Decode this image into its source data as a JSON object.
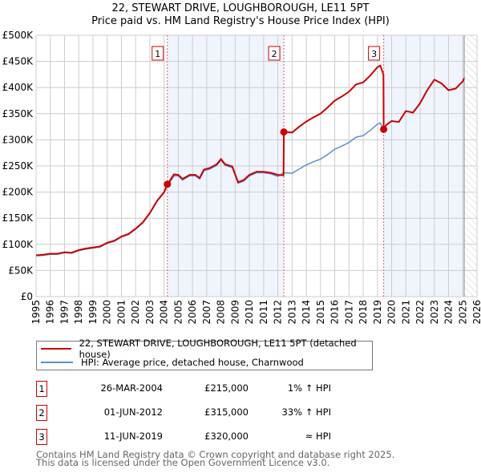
{
  "chart_data": {
    "type": "line",
    "title": "22, STEWART DRIVE, LOUGHBOROUGH, LE11 5PT",
    "subtitle": "Price paid vs. HM Land Registry's House Price Index (HPI)",
    "xlim": [
      1995,
      2026
    ],
    "ylim": [
      0,
      500000
    ],
    "x_ticks": [
      "1995",
      "1996",
      "1997",
      "1998",
      "1999",
      "2000",
      "2001",
      "2002",
      "2003",
      "2004",
      "2005",
      "2006",
      "2007",
      "2008",
      "2009",
      "2010",
      "2011",
      "2012",
      "2013",
      "2014",
      "2015",
      "2016",
      "2017",
      "2018",
      "2019",
      "2020",
      "2021",
      "2022",
      "2023",
      "2024",
      "2025",
      "2026"
    ],
    "y_ticks": [
      {
        "v": 0,
        "label": "£0"
      },
      {
        "v": 50000,
        "label": "£50K"
      },
      {
        "v": 100000,
        "label": "£100K"
      },
      {
        "v": 150000,
        "label": "£150K"
      },
      {
        "v": 200000,
        "label": "£200K"
      },
      {
        "v": 250000,
        "label": "£250K"
      },
      {
        "v": 300000,
        "label": "£300K"
      },
      {
        "v": 350000,
        "label": "£350K"
      },
      {
        "v": 400000,
        "label": "£400K"
      },
      {
        "v": 450000,
        "label": "£450K"
      },
      {
        "v": 500000,
        "label": "£500K"
      }
    ],
    "grid": true,
    "data_end": 2025.1,
    "series": [
      {
        "name": "22, STEWART DRIVE, LOUGHBOROUGH, LE11 5PT (detached house)",
        "color": "#cc0000",
        "x": [
          1995,
          1995.5,
          1996,
          1996.5,
          1997,
          1997.5,
          1998,
          1998.5,
          1999,
          1999.5,
          2000,
          2000.5,
          2001,
          2001.5,
          2002,
          2002.5,
          2003,
          2003.5,
          2004,
          2004.23,
          2004.7,
          2005,
          2005.3,
          2005.8,
          2006.2,
          2006.5,
          2006.8,
          2007.2,
          2007.7,
          2008,
          2008.3,
          2008.8,
          2009.2,
          2009.6,
          2010,
          2010.5,
          2011,
          2011.5,
          2012,
          2012.4,
          2012.42,
          2013,
          2013.5,
          2014,
          2014.5,
          2015,
          2015.5,
          2016,
          2016.5,
          2017,
          2017.5,
          2018,
          2018.5,
          2019,
          2019.2,
          2019.42,
          2019.44,
          2019.6,
          2020,
          2020.5,
          2021,
          2021.5,
          2022,
          2022.5,
          2023,
          2023.5,
          2024,
          2024.5,
          2025,
          2025.1
        ],
        "y": [
          79000,
          80000,
          82000,
          82000,
          85000,
          84000,
          89000,
          92000,
          94000,
          96000,
          103000,
          107000,
          115000,
          120000,
          130000,
          142000,
          160000,
          183000,
          200000,
          215000,
          234000,
          233000,
          225000,
          233000,
          233000,
          227000,
          243000,
          246000,
          253000,
          263000,
          253000,
          249000,
          219000,
          223000,
          233000,
          239000,
          239000,
          237000,
          233000,
          232000,
          315000,
          314000,
          325000,
          335000,
          343000,
          350000,
          362000,
          375000,
          383000,
          392000,
          406000,
          410000,
          423000,
          439000,
          442000,
          425000,
          320000,
          328000,
          336000,
          334000,
          355000,
          352000,
          370000,
          395000,
          415000,
          408000,
          395000,
          398000,
          412000,
          418000
        ]
      },
      {
        "name": "HPI: Average price, detached house, Charnwood",
        "color": "#5b8fd4",
        "x": [
          1995,
          1995.5,
          1996,
          1996.5,
          1997,
          1997.5,
          1998,
          1998.5,
          1999,
          1999.5,
          2000,
          2000.5,
          2001,
          2001.5,
          2002,
          2002.5,
          2003,
          2003.5,
          2004,
          2004.23,
          2004.7,
          2005,
          2005.3,
          2005.8,
          2006.2,
          2006.5,
          2006.8,
          2007.2,
          2007.7,
          2008,
          2008.3,
          2008.8,
          2009.2,
          2009.6,
          2010,
          2010.5,
          2011,
          2011.5,
          2012,
          2012.4,
          2013,
          2013.5,
          2014,
          2014.5,
          2015,
          2015.5,
          2016,
          2016.5,
          2017,
          2017.5,
          2018,
          2018.5,
          2019,
          2019.2,
          2019.42,
          2019.6,
          2020,
          2020.5,
          2021,
          2021.5,
          2022,
          2022.5,
          2023,
          2023.5,
          2024,
          2024.5,
          2025,
          2025.1
        ],
        "y": [
          78000,
          79000,
          81000,
          81000,
          84000,
          83000,
          88000,
          91000,
          93000,
          95000,
          102000,
          106000,
          114000,
          119000,
          129000,
          141000,
          159000,
          182000,
          199000,
          212000,
          231000,
          231000,
          223000,
          231000,
          231000,
          225000,
          241000,
          244000,
          251000,
          261000,
          251000,
          247000,
          217000,
          221000,
          231000,
          237000,
          237000,
          235000,
          230000,
          237000,
          236000,
          244000,
          252000,
          258000,
          263000,
          272000,
          282000,
          288000,
          295000,
          305000,
          308000,
          318000,
          330000,
          332000,
          320000,
          328000,
          336000,
          334000,
          355000,
          352000,
          370000,
          395000,
          415000,
          408000,
          395000,
          398000,
          412000,
          418000
        ]
      }
    ],
    "annotations": [
      {
        "label": "1",
        "x": 2004.23,
        "y": 215000
      },
      {
        "label": "2",
        "x": 2012.42,
        "y": 315000
      },
      {
        "label": "3",
        "x": 2019.44,
        "y": 320000
      }
    ],
    "legend_position": "below"
  },
  "legend": {
    "property": "22, STEWART DRIVE, LOUGHBOROUGH, LE11 5PT (detached house)",
    "hpi": "HPI: Average price, detached house, Charnwood"
  },
  "transactions": [
    {
      "num": "1",
      "date": "26-MAR-2004",
      "price": "£215,000",
      "hpi": "1% ↑ HPI"
    },
    {
      "num": "2",
      "date": "01-JUN-2012",
      "price": "£315,000",
      "hpi": "33% ↑ HPI"
    },
    {
      "num": "3",
      "date": "11-JUN-2019",
      "price": "£320,000",
      "hpi": "≈ HPI"
    }
  ],
  "footer": {
    "line1": "Contains HM Land Registry data © Crown copyright and database right 2025.",
    "line2": "This data is licensed under the Open Government Licence v3.0."
  }
}
